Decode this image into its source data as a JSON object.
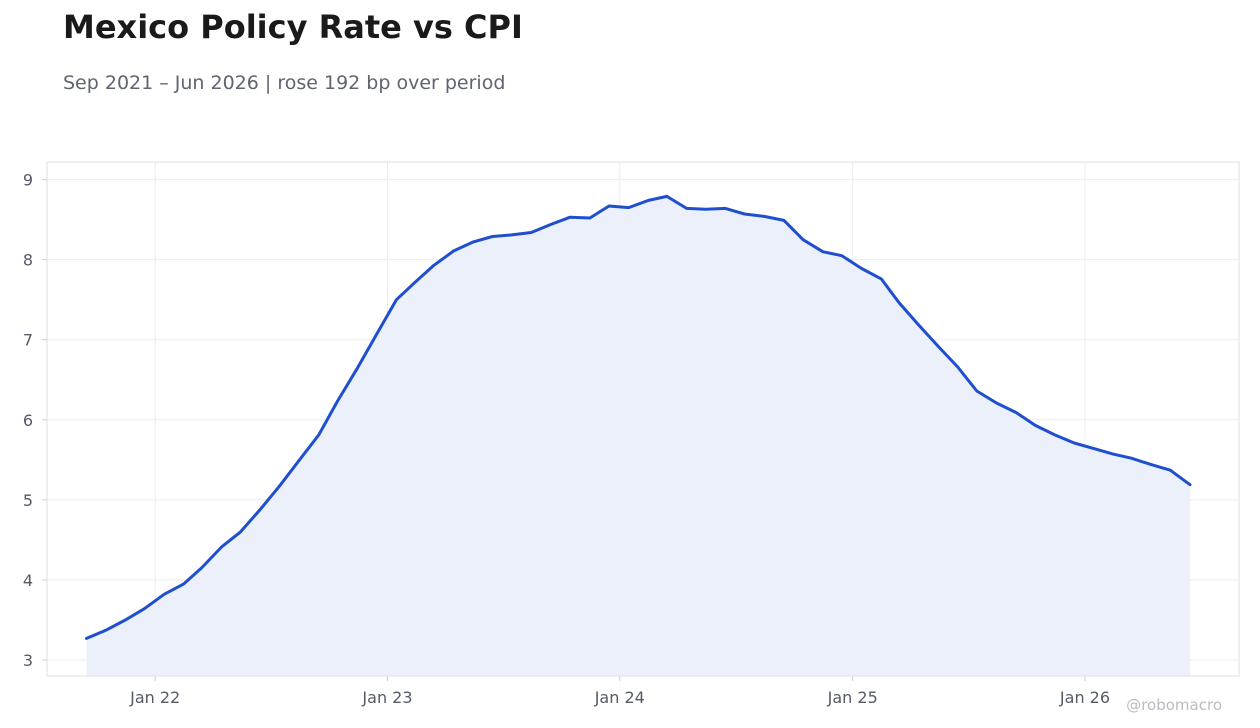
{
  "title": "Mexico Policy Rate vs CPI",
  "subtitle": "Sep 2021 – Jun 2026 | rose 192 bp over period",
  "watermark": "@robomacro",
  "colors": {
    "line": "#1f4fcf",
    "fill": "#ebf0fb",
    "grid": "#ececf0",
    "frame": "#dddfe4"
  },
  "chart_data": {
    "type": "area",
    "title": "Mexico Policy Rate vs CPI",
    "xlabel": "",
    "ylabel": "",
    "grid": true,
    "ylim": [
      2.8,
      9.22
    ],
    "xlim": [
      "2021-07-15",
      "2026-08-31"
    ],
    "y_ticks": [
      3,
      4,
      5,
      6,
      7,
      8,
      9
    ],
    "x_ticks": [
      {
        "date": "2022-01-01",
        "label": "Jan 22"
      },
      {
        "date": "2023-01-01",
        "label": "Jan 23"
      },
      {
        "date": "2024-01-01",
        "label": "Jan 24"
      },
      {
        "date": "2025-01-01",
        "label": "Jan 25"
      },
      {
        "date": "2026-01-01",
        "label": "Jan 26"
      }
    ],
    "x": [
      "2021-09",
      "2021-10",
      "2021-11",
      "2021-12",
      "2022-01",
      "2022-02",
      "2022-03",
      "2022-04",
      "2022-05",
      "2022-06",
      "2022-07",
      "2022-08",
      "2022-09",
      "2022-10",
      "2022-11",
      "2022-12",
      "2023-01",
      "2023-02",
      "2023-03",
      "2023-04",
      "2023-05",
      "2023-06",
      "2023-07",
      "2023-08",
      "2023-09",
      "2023-10",
      "2023-11",
      "2023-12",
      "2024-01",
      "2024-02",
      "2024-03",
      "2024-04",
      "2024-05",
      "2024-06",
      "2024-07",
      "2024-08",
      "2024-09",
      "2024-10",
      "2024-11",
      "2024-12",
      "2025-01",
      "2025-02",
      "2025-03",
      "2025-04",
      "2025-05",
      "2025-06",
      "2025-07",
      "2025-08",
      "2025-09",
      "2025-10",
      "2025-11",
      "2025-12",
      "2026-01",
      "2026-02",
      "2026-03",
      "2026-04",
      "2026-05",
      "2026-06"
    ],
    "values": [
      3.27,
      3.37,
      3.5,
      3.64,
      3.82,
      3.95,
      4.15,
      4.41,
      4.6,
      4.88,
      5.17,
      5.49,
      5.81,
      6.24,
      6.65,
      7.07,
      7.5,
      7.73,
      7.93,
      8.11,
      8.22,
      8.29,
      8.31,
      8.34,
      8.44,
      8.53,
      8.52,
      8.67,
      8.65,
      8.74,
      8.79,
      8.64,
      8.63,
      8.64,
      8.57,
      8.54,
      8.49,
      8.25,
      8.1,
      8.05,
      7.89,
      7.76,
      7.46,
      7.18,
      6.92,
      6.66,
      6.36,
      6.21,
      6.09,
      5.93,
      5.81,
      5.71,
      5.64,
      5.57,
      5.52,
      5.44,
      5.37,
      5.19
    ]
  }
}
